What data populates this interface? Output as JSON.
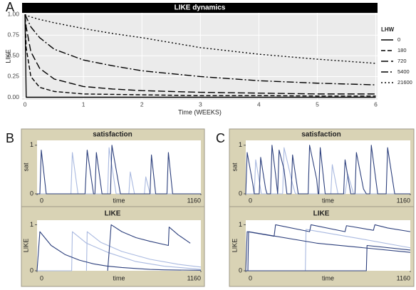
{
  "panel_labels": [
    "A",
    "B",
    "C"
  ],
  "chart_data": [
    {
      "type": "line",
      "title": "LIKE dynamics",
      "x_label": "Time (WEEKS)",
      "y_label": "LIKE",
      "legend_title": "LHW",
      "legend": "right",
      "grid": true,
      "x": [
        0,
        0.02,
        0.1,
        0.25,
        0.5,
        1,
        1.5,
        2,
        3,
        4,
        5,
        6
      ],
      "xlim": [
        -0.05,
        6.03
      ],
      "xticks": [
        0,
        1,
        2,
        3,
        4,
        5,
        6
      ],
      "ylim": [
        -0.03,
        1.02
      ],
      "yticks": [
        {
          "value": 0,
          "label": "0.00"
        },
        {
          "value": 0.25,
          "label": "0.25"
        },
        {
          "value": 0.5,
          "label": "0.50"
        },
        {
          "value": 0.75,
          "label": "0.75"
        },
        {
          "value": 1,
          "label": "1.00"
        }
      ],
      "series": [
        {
          "name": "0",
          "color": "#000000",
          "dash": "none",
          "values": [
            1,
            0,
            0,
            0,
            0,
            0,
            0,
            0,
            0,
            0,
            0,
            0
          ]
        },
        {
          "name": "180",
          "color": "#000000",
          "dash": "6,3",
          "values": [
            1,
            0.6,
            0.25,
            0.12,
            0.07,
            0.04,
            0.035,
            0.03,
            0.02,
            0.02,
            0.015,
            0.015
          ]
        },
        {
          "name": "720",
          "color": "#000000",
          "dash": "10,4",
          "values": [
            1,
            0.85,
            0.55,
            0.35,
            0.22,
            0.13,
            0.1,
            0.08,
            0.06,
            0.05,
            0.04,
            0.04
          ]
        },
        {
          "name": "5400",
          "color": "#000000",
          "dash": "10,3,2,3",
          "values": [
            1,
            0.97,
            0.85,
            0.72,
            0.58,
            0.45,
            0.38,
            0.32,
            0.25,
            0.2,
            0.17,
            0.15
          ]
        },
        {
          "name": "21600",
          "color": "#000000",
          "dash": "2,3",
          "values": [
            1,
            0.99,
            0.97,
            0.94,
            0.9,
            0.83,
            0.77,
            0.72,
            0.6,
            0.52,
            0.46,
            0.41
          ]
        }
      ]
    },
    {
      "type": "line",
      "title": "satisfaction",
      "x_label": "time",
      "y_label": "sat",
      "xlim": [
        0,
        1160
      ],
      "xticks": [
        0,
        1160
      ],
      "ylim": [
        0,
        1.1
      ],
      "yticks": [
        0,
        1
      ],
      "series": [
        {
          "color": "#a9b9e0",
          "x": [
            0,
            240,
            250,
            290,
            500,
            510,
            560,
            650,
            660,
            690,
            760,
            770,
            800,
            1160
          ],
          "values": [
            0,
            0,
            0.85,
            0,
            0,
            0.95,
            0,
            0,
            0.45,
            0,
            0,
            0.35,
            0,
            0
          ]
        },
        {
          "color": "#2c3f7c",
          "x": [
            0,
            20,
            30,
            65,
            340,
            355,
            400,
            410,
            420,
            460,
            520,
            530,
            590,
            800,
            810,
            840,
            920,
            930,
            960,
            1160
          ],
          "values": [
            0,
            0,
            0.9,
            0,
            0,
            0.9,
            0,
            0,
            0.85,
            0,
            0,
            1.0,
            0,
            0,
            0.8,
            0,
            0,
            0.85,
            0,
            0
          ]
        }
      ]
    },
    {
      "type": "line",
      "title": "LIKE",
      "x_label": "time",
      "y_label": "LIKE",
      "xlim": [
        0,
        1160
      ],
      "xticks": [
        0,
        1160
      ],
      "ylim": [
        0,
        1.1
      ],
      "yticks": [
        0,
        1
      ],
      "series": [
        {
          "color": "#a9b9e0",
          "x": [
            0,
            245,
            250,
            350,
            500,
            700,
            900,
            1160
          ],
          "values": [
            0,
            0,
            0.85,
            0.6,
            0.4,
            0.2,
            0.1,
            0.03
          ]
        },
        {
          "color": "#a9b9e0",
          "x": [
            350,
            355,
            450,
            600,
            800,
            1000,
            1160
          ],
          "values": [
            0,
            0.85,
            0.62,
            0.42,
            0.25,
            0.14,
            0.08
          ]
        },
        {
          "color": "#2c3f7c",
          "x": [
            0,
            20,
            100,
            200,
            300,
            400,
            500,
            600,
            700,
            800,
            900,
            1160
          ],
          "values": [
            0,
            0.85,
            0.55,
            0.35,
            0.23,
            0.15,
            0.1,
            0.07,
            0.05,
            0.03,
            0.02,
            0.01
          ]
        },
        {
          "color": "#2c3f7c",
          "x": [
            500,
            525,
            600,
            700,
            800,
            930,
            935,
            1000,
            1085
          ],
          "values": [
            0,
            1.0,
            0.85,
            0.72,
            0.64,
            0.55,
            0.95,
            0.78,
            0.6
          ]
        }
      ]
    },
    {
      "type": "line",
      "title": "satisfaction",
      "x_label": "time",
      "y_label": "sat",
      "xlim": [
        0,
        1160
      ],
      "xticks": [
        0,
        1160
      ],
      "ylim": [
        0,
        1.1
      ],
      "yticks": [
        0,
        1
      ],
      "series": [
        {
          "color": "#a9b9e0",
          "x": [
            0,
            60,
            70,
            110,
            260,
            270,
            330,
            350,
            600,
            610,
            650,
            700,
            720,
            760,
            1160
          ],
          "values": [
            0,
            0,
            0.7,
            0,
            0,
            0.95,
            0.2,
            0,
            0,
            0.6,
            0,
            0,
            0.4,
            0,
            0
          ]
        },
        {
          "color": "#2c3f7c",
          "x": [
            0,
            10,
            50,
            60,
            95,
            105,
            140,
            150,
            175,
            185,
            210,
            225,
            235,
            270,
            290,
            320,
            330,
            370,
            440,
            450,
            500,
            510,
            515,
            525,
            560,
            690,
            700,
            740,
            770,
            780,
            830,
            850,
            875,
            885,
            930,
            990,
            1000,
            1050,
            1160
          ],
          "values": [
            0,
            0.85,
            0.2,
            0,
            0,
            0.75,
            0.1,
            0,
            0,
            1.0,
            0.4,
            0,
            0.9,
            0.5,
            0,
            0,
            0.8,
            0,
            0,
            1.0,
            0.3,
            0,
            0,
            0.95,
            0,
            0,
            0.7,
            0,
            0,
            0.85,
            0.1,
            0,
            0,
            1.0,
            0,
            0,
            0.95,
            0,
            0
          ]
        }
      ]
    },
    {
      "type": "line",
      "title": "LIKE",
      "x_label": "time",
      "y_label": "LIKE",
      "xlim": [
        0,
        1160
      ],
      "xticks": [
        0,
        1160
      ],
      "ylim": [
        0,
        1.1
      ],
      "yticks": [
        0,
        1
      ],
      "series": [
        {
          "color": "#a9b9e0",
          "x": [
            0,
            420,
            425,
            800,
            1160
          ],
          "values": [
            0,
            0,
            0.9,
            0.7,
            0.5
          ]
        },
        {
          "color": "#2c3f7c",
          "x": [
            0,
            10,
            200,
            210,
            450,
            460,
            700,
            710,
            900,
            910,
            1000,
            1160
          ],
          "values": [
            0,
            0.85,
            0.75,
            1.0,
            0.85,
            1.0,
            0.85,
            0.98,
            0.88,
            1.0,
            0.93,
            0.85
          ]
        },
        {
          "color": "#2c3f7c",
          "x": [
            0,
            15,
            20,
            500,
            1160
          ],
          "values": [
            0,
            0,
            0.85,
            0.6,
            0.4
          ]
        },
        {
          "color": "#2c3f7c",
          "x": [
            0,
            850,
            855,
            1160
          ],
          "values": [
            0,
            0,
            0.55,
            0.45
          ]
        }
      ]
    }
  ]
}
